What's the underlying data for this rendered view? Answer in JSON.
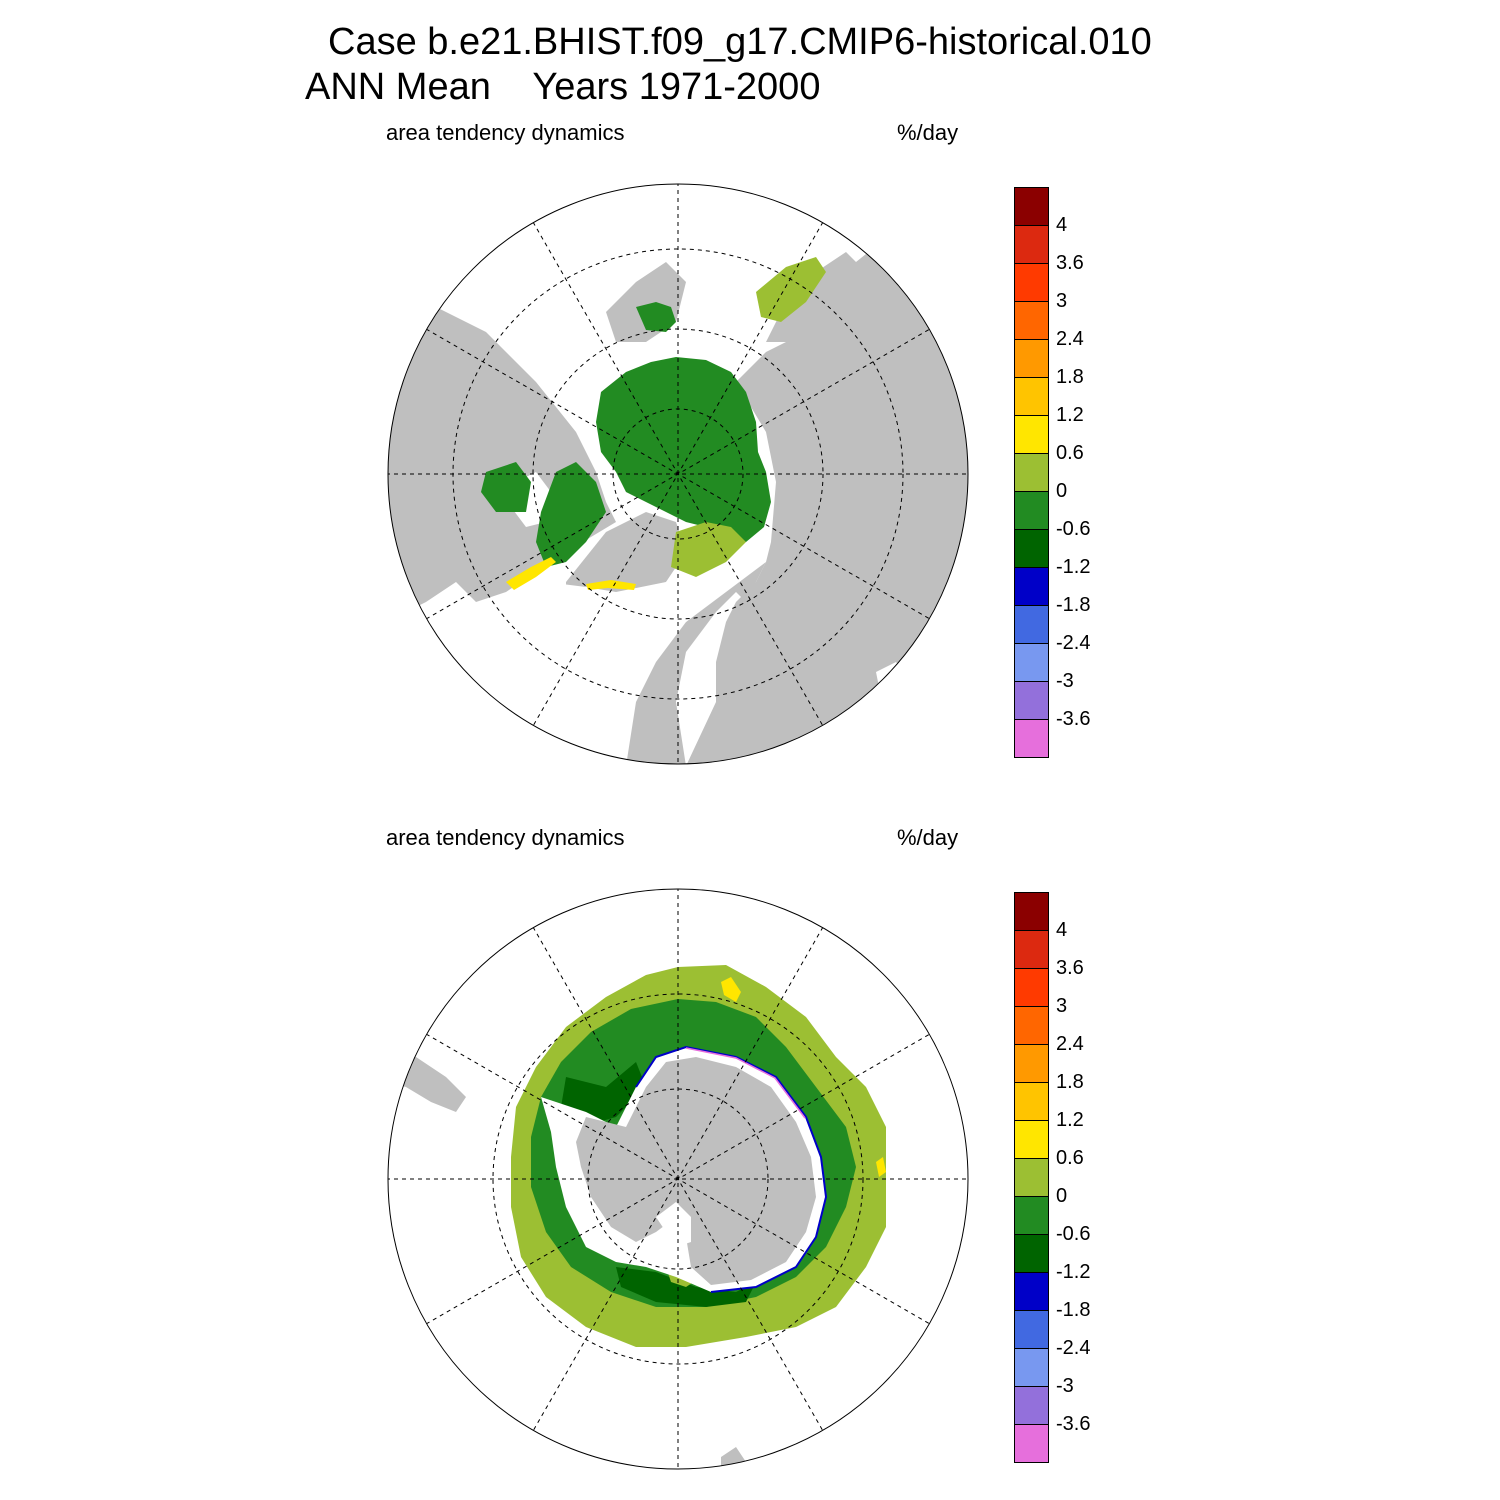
{
  "header": {
    "title_line1": "Case b.e21.BHIST.f09_g17.CMIP6-historical.010",
    "title_line2": "ANN Mean    Years 1971-2000"
  },
  "panels": [
    {
      "id": "north",
      "hemisphere": "Northern Hemisphere (North Pole)",
      "left_label": "area tendency dynamics",
      "right_label": "%/day"
    },
    {
      "id": "south",
      "hemisphere": "Southern Hemisphere (South Pole)",
      "left_label": "area tendency dynamics",
      "right_label": "%/day"
    }
  ],
  "colorbar": {
    "levels": [
      "4",
      "3.6",
      "3",
      "2.4",
      "1.8",
      "1.2",
      "0.6",
      "0",
      "-0.6",
      "-1.2",
      "-1.8",
      "-2.4",
      "-3",
      "-3.6"
    ],
    "colors": [
      "#8b0000",
      "#dc2910",
      "#ff3a00",
      "#ff6600",
      "#ff9900",
      "#ffc400",
      "#ffe600",
      "#9cbf33",
      "#228b22",
      "#006400",
      "#0000c8",
      "#4169e1",
      "#7898f0",
      "#9370db",
      "#e66fdc"
    ]
  },
  "map_colors": {
    "land": "#bfbfbf",
    "no_ice_ocean": "#ffffff",
    "grid_line": "#000000"
  }
}
